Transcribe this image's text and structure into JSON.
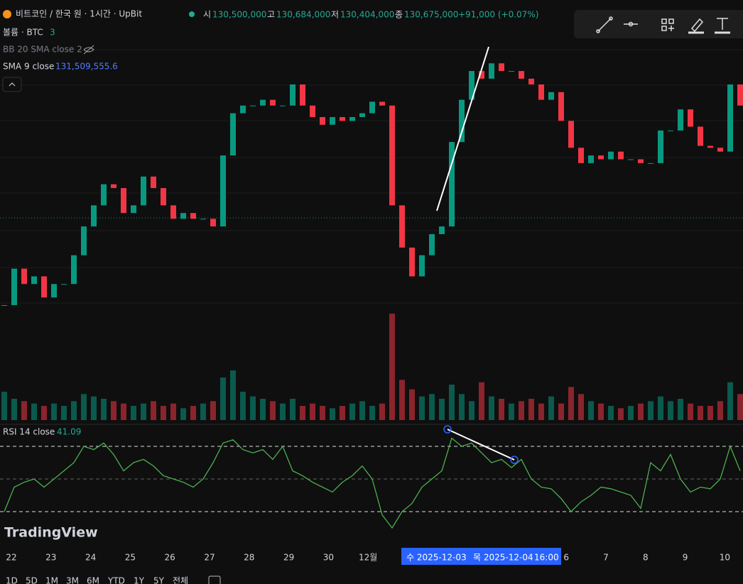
{
  "header": {
    "symbol": "비트코인 / 한국 원 · 1시간 · UpBit",
    "ohlc": [
      {
        "label": "시",
        "value": "130,500,000"
      },
      {
        "label": "고",
        "value": "130,684,000"
      },
      {
        "label": "저",
        "value": "130,404,000"
      },
      {
        "label": "종",
        "value": "130,675,000"
      }
    ],
    "change": "+91,000 (+0.07%)",
    "volume_label": "볼륨 · BTC",
    "volume_value": "3",
    "bb_label": "BB 20 SMA close 2",
    "sma_label": "SMA 9 close",
    "sma_value": "131,509,555.6",
    "rsi_label": "RSI 14 close",
    "rsi_value": "41.09",
    "logo": "TradingView"
  },
  "chart_data": {
    "type": "candlestick",
    "close": [
      126100000,
      128000000,
      127200000,
      127600000,
      126500000,
      127200000,
      127200000,
      128700000,
      130200000,
      131300000,
      132400000,
      132200000,
      130900000,
      131300000,
      132800000,
      132200000,
      131300000,
      130600000,
      130900000,
      130600000,
      130600000,
      130200000,
      133900000,
      136100000,
      136500000,
      136500000,
      136800000,
      136500000,
      136500000,
      137600000,
      136500000,
      135900000,
      135500000,
      135900000,
      135700000,
      135900000,
      136100000,
      136700000,
      136500000,
      131300000,
      129100000,
      127600000,
      128700000,
      129800000,
      130200000,
      134600000,
      136800000,
      138300000,
      137900000,
      138700000,
      138300000,
      138300000,
      137900000,
      137600000,
      136800000,
      137200000,
      135700000,
      134300000,
      133500000,
      133900000,
      133700000,
      134100000,
      133700000,
      133700000,
      133500000,
      133500000,
      135200000,
      135200000,
      136300000,
      135400000,
      134400000,
      134300000,
      134100000,
      137600000,
      136500000
    ],
    "ylim": [
      120000000,
      142000000
    ],
    "up_color": "#089981",
    "down_color": "#f23645",
    "volume": [
      120,
      90,
      80,
      70,
      60,
      70,
      60,
      80,
      110,
      100,
      90,
      80,
      70,
      60,
      70,
      80,
      60,
      70,
      50,
      60,
      70,
      80,
      180,
      210,
      120,
      100,
      90,
      80,
      70,
      90,
      60,
      70,
      60,
      50,
      60,
      70,
      80,
      60,
      70,
      450,
      170,
      130,
      100,
      110,
      90,
      150,
      110,
      80,
      160,
      100,
      90,
      70,
      80,
      90,
      70,
      100,
      70,
      140,
      110,
      80,
      70,
      60,
      50,
      60,
      70,
      80,
      100,
      80,
      90,
      70,
      60,
      60,
      80,
      160,
      110
    ],
    "volume_ylim": [
      0,
      600
    ],
    "rsi": [
      30,
      45,
      48,
      50,
      45,
      50,
      55,
      60,
      70,
      68,
      72,
      65,
      55,
      60,
      62,
      58,
      52,
      50,
      48,
      45,
      50,
      60,
      72,
      74,
      68,
      66,
      68,
      62,
      70,
      55,
      52,
      48,
      45,
      42,
      48,
      52,
      58,
      50,
      28,
      20,
      30,
      35,
      45,
      50,
      55,
      75,
      70,
      72,
      66,
      60,
      62,
      57,
      62,
      50,
      45,
      44,
      38,
      30,
      36,
      40,
      45,
      44,
      42,
      40,
      32,
      60,
      55,
      65,
      50,
      42,
      45,
      44,
      50,
      70,
      55
    ],
    "rsi_ylim": [
      0,
      100
    ],
    "rsi_bands": [
      70,
      50,
      30
    ],
    "rsi_color": "#4caf50",
    "categories": [
      "22",
      "23",
      "24",
      "25",
      "26",
      "27",
      "28",
      "29",
      "30",
      "12월",
      null,
      null,
      null,
      null,
      "6",
      "7",
      "8",
      "9",
      "10"
    ],
    "crosshair": [
      "수 2025-12-03",
      "목 2025-12-04",
      "16:00"
    ]
  },
  "toolbar": [
    "1D",
    "5D",
    "1M",
    "3M",
    "6M",
    "YTD",
    "1Y",
    "5Y",
    "전체"
  ]
}
